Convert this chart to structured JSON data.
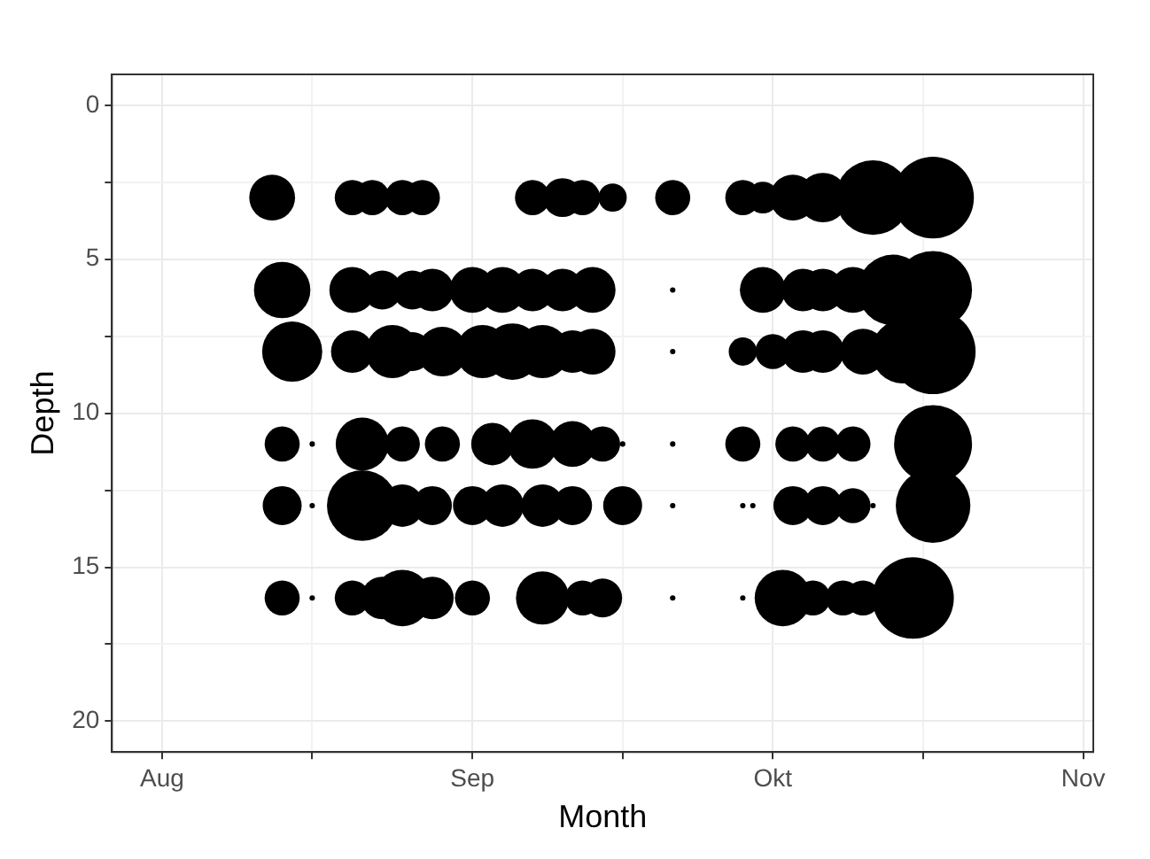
{
  "chart_data": {
    "type": "bubble",
    "xlabel": "Month",
    "ylabel": "Depth",
    "series": [
      {
        "color": "#000000",
        "x": [
          "--08-12",
          "--08-20",
          "--08-22",
          "--08-25",
          "--08-27",
          "--09-07",
          "--09-10",
          "--09-12",
          "--09-15",
          "--09-21",
          "--09-28",
          "--09-30",
          "--10-03",
          "--10-06",
          "--10-11",
          "--10-17",
          "--08-13",
          "--08-20",
          "--08-23",
          "--08-26",
          "--08-28",
          "--09-01",
          "--09-04",
          "--09-07",
          "--09-10",
          "--09-13",
          "--09-21",
          "--09-28",
          "--09-30",
          "--10-04",
          "--10-06",
          "--10-09",
          "--10-13",
          "--10-17",
          "--08-14",
          "--08-20",
          "--08-24",
          "--08-26",
          "--08-29",
          "--09-02",
          "--09-05",
          "--09-08",
          "--09-11",
          "--09-13",
          "--09-21",
          "--09-28",
          "--10-01",
          "--10-04",
          "--10-06",
          "--10-10",
          "--10-14",
          "--10-17",
          "--08-13",
          "--08-16",
          "--08-21",
          "--08-25",
          "--08-29",
          "--09-03",
          "--09-07",
          "--09-11",
          "--09-14",
          "--09-16",
          "--09-21",
          "--09-28",
          "--10-03",
          "--10-06",
          "--10-09",
          "--10-17",
          "--08-13",
          "--08-16",
          "--08-21",
          "--08-25",
          "--08-28",
          "--09-01",
          "--09-04",
          "--09-08",
          "--09-11",
          "--09-16",
          "--09-21",
          "--09-28",
          "--09-29",
          "--10-03",
          "--10-06",
          "--10-09",
          "--10-11",
          "--10-17",
          "--08-13",
          "--08-16",
          "--08-20",
          "--08-23",
          "--08-25",
          "--08-28",
          "--09-01",
          "--09-08",
          "--09-12",
          "--09-14",
          "--09-21",
          "--09-28",
          "--10-02",
          "--10-05",
          "--10-08",
          "--10-10",
          "--10-15"
        ],
        "values": [
          3,
          3,
          3,
          3,
          3,
          3,
          3,
          3,
          3,
          3,
          3,
          3,
          3,
          3,
          3,
          3,
          6,
          6,
          6,
          6,
          6,
          6,
          6,
          6,
          6,
          6,
          6,
          6,
          6,
          6,
          6,
          6,
          6,
          6,
          8,
          8,
          8,
          8,
          8,
          8,
          8,
          8,
          8,
          8,
          8,
          8,
          8,
          8,
          8,
          8,
          8,
          8,
          11,
          11,
          11,
          11,
          11,
          11,
          11,
          11,
          11,
          11,
          11,
          11,
          11,
          11,
          11,
          11,
          13,
          13,
          13,
          13,
          13,
          13,
          13,
          13,
          13,
          13,
          13,
          13,
          13,
          13,
          13,
          13,
          13,
          13,
          16,
          16,
          16,
          16,
          16,
          16,
          16,
          16,
          16,
          16,
          16,
          16,
          16,
          16,
          16,
          16,
          16
        ],
        "sizes": [
          0.29,
          0.17,
          0.17,
          0.17,
          0.17,
          0.17,
          0.21,
          0.17,
          0.11,
          0.17,
          0.17,
          0.14,
          0.29,
          0.34,
          0.77,
          0.92,
          0.44,
          0.29,
          0.21,
          0.21,
          0.25,
          0.29,
          0.29,
          0.25,
          0.25,
          0.29,
          0.004,
          0.004,
          0.29,
          0.25,
          0.25,
          0.29,
          0.69,
          0.84,
          0.5,
          0.25,
          0.39,
          0.21,
          0.34,
          0.39,
          0.44,
          0.39,
          0.25,
          0.29,
          0.004,
          0.11,
          0.17,
          0.25,
          0.25,
          0.29,
          0.56,
          1,
          0.17,
          0.004,
          0.39,
          0.17,
          0.17,
          0.25,
          0.34,
          0.29,
          0.17,
          0.004,
          0.004,
          0.17,
          0.17,
          0.17,
          0.17,
          0.84,
          0.21,
          0.004,
          0.69,
          0.25,
          0.21,
          0.21,
          0.25,
          0.25,
          0.21,
          0.21,
          0.004,
          0.004,
          0.004,
          0.21,
          0.21,
          0.17,
          0.004,
          0.77,
          0.17,
          0.004,
          0.17,
          0.25,
          0.44,
          0.25,
          0.17,
          0.39,
          0.17,
          0.21,
          0.004,
          0.004,
          0.44,
          0.17,
          0.17,
          0.17,
          0.92
        ]
      }
    ],
    "xlim": [
      "--07-27",
      "--11-02"
    ],
    "xticks": [
      {
        "value": "--08-01",
        "label": "Aug"
      },
      {
        "value": "--08-16",
        "label": null
      },
      {
        "value": "--09-01",
        "label": "Sep"
      },
      {
        "value": "--09-16",
        "label": null
      },
      {
        "value": "--10-01",
        "label": "Okt"
      },
      {
        "value": "--10-16",
        "label": null
      },
      {
        "value": "--11-01",
        "label": "Nov"
      }
    ],
    "ylim": [
      21,
      -1
    ],
    "yticks": [
      0,
      {
        "value": 2.5,
        "label": null
      },
      5,
      {
        "value": 7.5,
        "label": null
      },
      10,
      {
        "value": 12.5,
        "label": null
      },
      15,
      {
        "value": 17.5,
        "label": null
      },
      20
    ],
    "grid": true,
    "legend": false
  }
}
